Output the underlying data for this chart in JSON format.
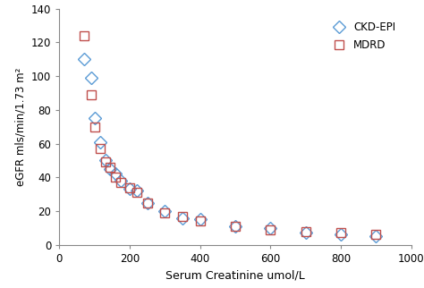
{
  "ckd_epi_x": [
    70,
    90,
    100,
    115,
    130,
    145,
    160,
    175,
    200,
    220,
    250,
    300,
    350,
    400,
    500,
    600,
    700,
    800,
    900
  ],
  "ckd_epi_y": [
    110,
    99,
    75,
    61,
    50,
    45,
    42,
    38,
    33,
    32,
    25,
    20,
    16,
    15,
    11,
    10,
    7,
    6,
    5
  ],
  "mdrd_x": [
    70,
    90,
    100,
    115,
    130,
    145,
    160,
    175,
    200,
    220,
    250,
    300,
    350,
    400,
    500,
    600,
    700,
    800,
    900
  ],
  "mdrd_y": [
    124,
    89,
    70,
    57,
    49,
    46,
    40,
    37,
    34,
    31,
    25,
    19,
    17,
    14,
    11,
    9,
    8,
    7,
    6
  ],
  "ckd_color": "#5b9bd5",
  "mdrd_color": "#c0504d",
  "xlabel": "Serum Creatinine umol/L",
  "ylabel": "eGFR mls/min/1.73 m²",
  "xlim": [
    0,
    1000
  ],
  "ylim": [
    0,
    140
  ],
  "xticks": [
    0,
    200,
    400,
    600,
    800,
    1000
  ],
  "yticks": [
    0,
    20,
    40,
    60,
    80,
    100,
    120,
    140
  ],
  "legend_labels": [
    "CKD-EPI",
    "MDRD"
  ],
  "marker_size": 7,
  "figwidth": 4.74,
  "figheight": 3.22,
  "dpi": 100
}
